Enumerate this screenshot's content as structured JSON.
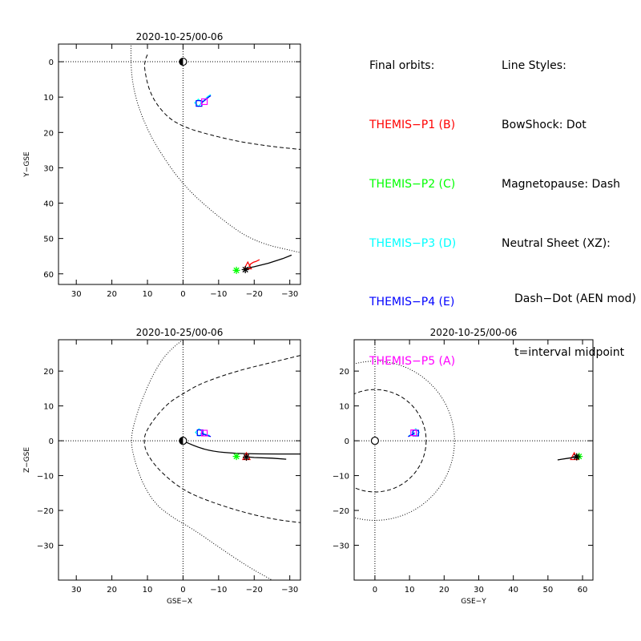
{
  "legend": {
    "orbits_title": "Final orbits:",
    "probes": [
      {
        "label": "THEMIS−P1 (B)",
        "color": "#ff0000"
      },
      {
        "label": "THEMIS−P2 (C)",
        "color": "#00ff00"
      },
      {
        "label": "THEMIS−P3 (D)",
        "color": "#00ffff"
      },
      {
        "label": "THEMIS−P4 (E)",
        "color": "#0000ff"
      },
      {
        "label": "THEMIS−P5 (A)",
        "color": "#ff00ff"
      }
    ],
    "styles_title": "Line Styles:",
    "bowshock": "BowShock: Dot",
    "magnetopause": "Magnetopause: Dash",
    "neutral_sheet": "Neutral Sheet (XZ):",
    "neutral_sheet_2": "Dash−Dot (AEN mod)",
    "t_note": "t=interval midpoint"
  },
  "chart_data": [
    {
      "type": "line",
      "title": "2020-10-25/00-06",
      "xlabel": "",
      "ylabel": "Y−GSE",
      "xlim": [
        35,
        -33
      ],
      "ylim": [
        -5,
        63
      ],
      "y_reversed": true,
      "xticks": [
        30,
        20,
        10,
        0,
        -10,
        -20,
        -30
      ],
      "yticks": [
        0,
        10,
        20,
        30,
        40,
        50,
        60
      ],
      "earth": [
        0,
        0
      ],
      "bowshock": [
        [
          14.2,
          -25
        ],
        [
          14.5,
          -10
        ],
        [
          14.7,
          0
        ],
        [
          14.2,
          6
        ],
        [
          12.8,
          12
        ],
        [
          10.5,
          18
        ],
        [
          7.5,
          24
        ],
        [
          0,
          35
        ],
        [
          -10,
          44
        ],
        [
          -20,
          51
        ],
        [
          -33,
          54
        ]
      ],
      "magnetopause": [
        [
          10,
          -2
        ],
        [
          11,
          0
        ],
        [
          10.5,
          4
        ],
        [
          9.5,
          8
        ],
        [
          7.5,
          12
        ],
        [
          4,
          16
        ],
        [
          0,
          18.3
        ],
        [
          -5,
          20
        ],
        [
          -15,
          22.5
        ],
        [
          -25,
          24
        ],
        [
          -33,
          24.8
        ]
      ],
      "series": [
        {
          "name": "THEMIS−P1 (B)",
          "color": "#ff0000",
          "points": [
            [
              -18.5,
              58
            ],
            [
              -19,
              57.2
            ],
            [
              -19.8,
              56.7
            ],
            [
              -20.5,
              56.5
            ],
            [
              -21.5,
              56
            ]
          ],
          "end_marker": "triangle",
          "end": [
            -18.2,
            57.8
          ]
        },
        {
          "name": "THEMIS−P2 (C)",
          "color": "#00ff00",
          "points": [],
          "end_marker": "asterisk",
          "end": [
            -15,
            59
          ]
        },
        {
          "name": "THEMIS−P3 (D)",
          "color": "#00ffff",
          "points": [
            [
              -5,
              11.8
            ],
            [
              -5.8,
              11
            ],
            [
              -7,
              9.8
            ],
            [
              -7.8,
              9.3
            ]
          ],
          "end_marker": "diamond",
          "end": [
            -4.3,
            11.6
          ]
        },
        {
          "name": "THEMIS−P4 (E)",
          "color": "#0000ff",
          "points": [
            [
              -5,
              11.8
            ],
            [
              -6,
              11
            ],
            [
              -7.2,
              10
            ],
            [
              -7.8,
              9.6
            ]
          ],
          "end_marker": "square",
          "end": [
            -4.5,
            11.8
          ]
        },
        {
          "name": "THEMIS−P5 (A)",
          "color": "#ff00ff",
          "points": [],
          "end_marker": "square",
          "end": [
            -6,
            11.3
          ]
        },
        {
          "name": "",
          "color": "#000000",
          "points": [
            [
              -17.5,
              58.5
            ],
            [
              -20,
              58
            ],
            [
              -24,
              57
            ],
            [
              -28,
              55.7
            ],
            [
              -30.5,
              54.7
            ]
          ],
          "end_marker": "asterisk",
          "end": [
            -17.5,
            58.8
          ]
        }
      ]
    },
    {
      "type": "line",
      "title": "2020-10-25/00-06",
      "xlabel": "GSE−X",
      "ylabel": "Z−GSE",
      "xlim": [
        35,
        -33
      ],
      "ylim": [
        -40,
        29
      ],
      "y_reversed": false,
      "xticks": [
        30,
        20,
        10,
        0,
        -10,
        -20,
        -30
      ],
      "yticks": [
        20,
        10,
        0,
        -10,
        -20,
        -30
      ],
      "earth": [
        0,
        0
      ],
      "bowshock": [
        [
          0,
          29
        ],
        [
          4,
          26
        ],
        [
          8,
          20
        ],
        [
          11.5,
          12
        ],
        [
          13.8,
          5
        ],
        [
          14.7,
          0
        ],
        [
          13.8,
          -5
        ],
        [
          11.5,
          -12
        ],
        [
          8,
          -18
        ],
        [
          3,
          -22
        ],
        [
          -3,
          -25.5
        ],
        [
          -10,
          -30.5
        ],
        [
          -18,
          -36
        ],
        [
          -25,
          -40
        ]
      ],
      "magnetopause": [
        [
          -33,
          24.5
        ],
        [
          -25,
          22.5
        ],
        [
          -15,
          20
        ],
        [
          -5,
          16.5
        ],
        [
          0,
          13.5
        ],
        [
          4,
          11
        ],
        [
          8,
          6.5
        ],
        [
          10.5,
          2.5
        ],
        [
          11,
          0
        ],
        [
          10.5,
          -3
        ],
        [
          8,
          -7
        ],
        [
          4,
          -11
        ],
        [
          0,
          -14
        ],
        [
          -5,
          -16.5
        ],
        [
          -15,
          -20
        ],
        [
          -25,
          -22.5
        ],
        [
          -33,
          -23.5
        ]
      ],
      "neutral_sheet": [
        [
          0,
          0
        ],
        [
          -3,
          -1.5
        ],
        [
          -8,
          -3
        ],
        [
          -15,
          -3.7
        ],
        [
          -25,
          -3.8
        ],
        [
          -33,
          -3.8
        ]
      ],
      "series": [
        {
          "name": "THEMIS−P1 (B)",
          "color": "#ff0000",
          "points": [],
          "end_marker": "triangle",
          "end": [
            -17.8,
            -4.6
          ]
        },
        {
          "name": "THEMIS−P2 (C)",
          "color": "#00ff00",
          "points": [],
          "end_marker": "asterisk",
          "end": [
            -15,
            -4.5
          ]
        },
        {
          "name": "THEMIS−P3 (D)",
          "color": "#00ffff",
          "points": [
            [
              -5,
              2.2
            ],
            [
              -6.5,
              1.8
            ],
            [
              -7.5,
              1.5
            ]
          ],
          "end_marker": "diamond",
          "end": [
            -4.5,
            2.4
          ]
        },
        {
          "name": "THEMIS−P4 (E)",
          "color": "#0000ff",
          "points": [
            [
              -5,
              2.2
            ],
            [
              -6.5,
              1.6
            ],
            [
              -7.8,
              1.2
            ]
          ],
          "end_marker": "square",
          "end": [
            -4.8,
            2.3
          ]
        },
        {
          "name": "THEMIS−P5 (A)",
          "color": "#ff00ff",
          "points": [],
          "end_marker": "square",
          "end": [
            -6,
            2.2
          ]
        },
        {
          "name": "",
          "color": "#000000",
          "points": [
            [
              -17.8,
              -4.6
            ],
            [
              -20,
              -4.8
            ],
            [
              -25,
              -5
            ],
            [
              -29,
              -5.3
            ]
          ],
          "end_marker": "asterisk",
          "end": [
            -17.8,
            -4.7
          ]
        }
      ]
    },
    {
      "type": "line",
      "title": "2020-10-25/00-06",
      "xlabel": "GSE−Y",
      "ylabel": "",
      "xlim": [
        -6,
        63
      ],
      "ylim": [
        -40,
        29
      ],
      "y_reversed": false,
      "xticks": [
        0,
        10,
        20,
        30,
        40,
        50,
        60
      ],
      "yticks": [
        20,
        10,
        0,
        -10,
        -20,
        -30
      ],
      "earth": [
        0,
        0
      ],
      "bowshock_circle": 23,
      "magnetopause_circle": 14.8,
      "series": [
        {
          "name": "THEMIS−P1 (B)",
          "color": "#ff0000",
          "points": [],
          "end_marker": "triangle",
          "end": [
            57.6,
            -4.6
          ]
        },
        {
          "name": "THEMIS−P2 (C)",
          "color": "#00ff00",
          "points": [],
          "end_marker": "asterisk",
          "end": [
            59,
            -4.5
          ]
        },
        {
          "name": "THEMIS−P3 (D)",
          "color": "#00ffff",
          "points": [
            [
              11.5,
              2.3
            ],
            [
              10.5,
              1.8
            ],
            [
              9.8,
              1.4
            ]
          ],
          "end_marker": "diamond",
          "end": [
            11.8,
            2.4
          ]
        },
        {
          "name": "THEMIS−P4 (E)",
          "color": "#0000ff",
          "points": [
            [
              11.5,
              2.3
            ],
            [
              10.5,
              1.6
            ],
            [
              9.6,
              1.2
            ]
          ],
          "end_marker": "square",
          "end": [
            11.8,
            2.2
          ]
        },
        {
          "name": "THEMIS−P5 (A)",
          "color": "#ff00ff",
          "points": [],
          "end_marker": "square",
          "end": [
            11.2,
            2.3
          ]
        },
        {
          "name": "",
          "color": "#000000",
          "points": [
            [
              58.5,
              -4.6
            ],
            [
              56,
              -5
            ],
            [
              54,
              -5.3
            ],
            [
              52.8,
              -5.5
            ]
          ],
          "end_marker": "asterisk",
          "end": [
            58.3,
            -4.6
          ]
        }
      ]
    }
  ]
}
